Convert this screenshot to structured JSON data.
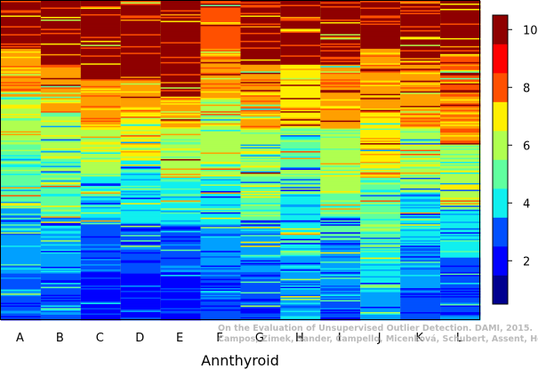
{
  "chart_data": {
    "type": "heatmap",
    "title": "",
    "xlabel": "Annthyroid",
    "ylabel": "",
    "categories": [
      "A",
      "B",
      "C",
      "D",
      "E",
      "F",
      "G",
      "H",
      "I",
      "J",
      "K",
      "L"
    ],
    "colorbar": {
      "min": 0.5,
      "max": 10.5,
      "ticks": [
        2,
        4,
        6,
        8,
        10
      ],
      "levels": 10,
      "colors": [
        "#00008f",
        "#0000ff",
        "#0050ff",
        "#00a0ff",
        "#10efef",
        "#60ff9f",
        "#afff50",
        "#ffef00",
        "#ff9f00",
        "#ff5000",
        "#ff0000",
        "#8f0000"
      ]
    },
    "columns": [
      {
        "name": "A",
        "bands": [
          [
            0.15,
            10
          ],
          [
            0.3,
            8
          ],
          [
            0.45,
            6
          ],
          [
            0.65,
            5
          ],
          [
            0.85,
            3
          ],
          [
            1.0,
            2
          ]
        ]
      },
      {
        "name": "B",
        "bands": [
          [
            0.2,
            10
          ],
          [
            0.35,
            8
          ],
          [
            0.5,
            6
          ],
          [
            0.68,
            5
          ],
          [
            0.85,
            3
          ],
          [
            1.0,
            2
          ]
        ]
      },
      {
        "name": "C",
        "bands": [
          [
            0.25,
            10
          ],
          [
            0.4,
            8
          ],
          [
            0.55,
            6
          ],
          [
            0.7,
            4
          ],
          [
            0.85,
            2
          ],
          [
            1.0,
            1
          ]
        ]
      },
      {
        "name": "D",
        "bands": [
          [
            0.25,
            10
          ],
          [
            0.35,
            8
          ],
          [
            0.5,
            7
          ],
          [
            0.7,
            4
          ],
          [
            0.85,
            2
          ],
          [
            1.0,
            1
          ]
        ]
      },
      {
        "name": "E",
        "bands": [
          [
            0.3,
            10
          ],
          [
            0.4,
            8
          ],
          [
            0.55,
            6
          ],
          [
            0.7,
            4
          ],
          [
            0.85,
            2
          ],
          [
            1.0,
            1
          ]
        ]
      },
      {
        "name": "F",
        "bands": [
          [
            0.15,
            9
          ],
          [
            0.3,
            8
          ],
          [
            0.55,
            6
          ],
          [
            0.7,
            4
          ],
          [
            0.85,
            3
          ],
          [
            1.0,
            2
          ]
        ]
      },
      {
        "name": "G",
        "bands": [
          [
            0.2,
            10
          ],
          [
            0.4,
            8
          ],
          [
            0.55,
            6
          ],
          [
            0.7,
            5
          ],
          [
            0.85,
            3
          ],
          [
            1.0,
            2
          ]
        ]
      },
      {
        "name": "H",
        "bands": [
          [
            0.2,
            10
          ],
          [
            0.4,
            7
          ],
          [
            0.6,
            5
          ],
          [
            0.8,
            4
          ],
          [
            1.0,
            3
          ]
        ]
      },
      {
        "name": "I",
        "bands": [
          [
            0.2,
            10
          ],
          [
            0.4,
            8
          ],
          [
            0.6,
            6
          ],
          [
            0.75,
            5
          ],
          [
            0.9,
            3
          ],
          [
            1.0,
            2
          ]
        ]
      },
      {
        "name": "J",
        "bands": [
          [
            0.15,
            10
          ],
          [
            0.35,
            8
          ],
          [
            0.55,
            7
          ],
          [
            0.75,
            5
          ],
          [
            0.9,
            4
          ],
          [
            1.0,
            3
          ]
        ]
      },
      {
        "name": "K",
        "bands": [
          [
            0.2,
            10
          ],
          [
            0.4,
            8
          ],
          [
            0.6,
            6
          ],
          [
            0.75,
            4
          ],
          [
            0.9,
            3
          ],
          [
            1.0,
            2
          ]
        ]
      },
      {
        "name": "L",
        "bands": [
          [
            0.15,
            10
          ],
          [
            0.3,
            9
          ],
          [
            0.45,
            8
          ],
          [
            0.65,
            6
          ],
          [
            0.8,
            4
          ],
          [
            1.0,
            2
          ]
        ]
      }
    ]
  },
  "watermark": {
    "line1": "On the Evaluation of Unsupervised Outlier Detection. DAMI, 2015.",
    "line2": "Campos, Zimek, Sander, Campello, Micenková, Schubert, Assent, Houle"
  }
}
